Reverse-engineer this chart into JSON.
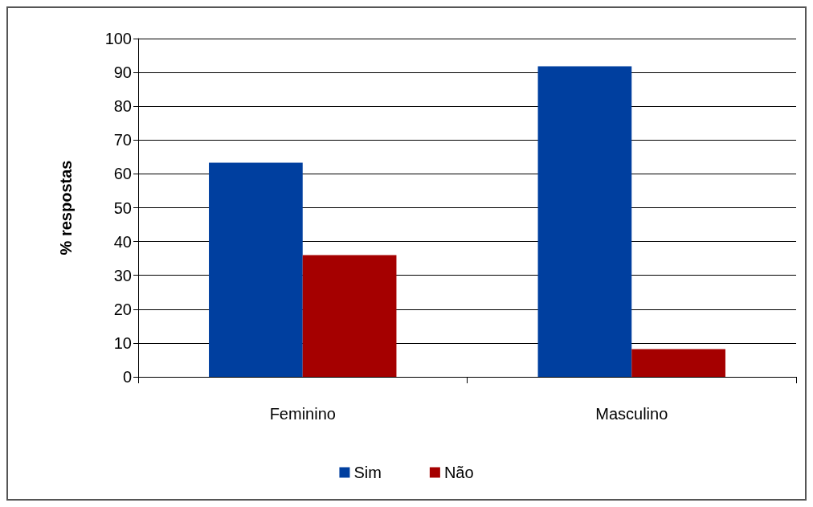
{
  "chart_data": {
    "type": "bar",
    "ylabel": "% respostas",
    "categories": [
      "Feminino",
      "Masculino"
    ],
    "series": [
      {
        "name": "Sim",
        "color": "#003f9f",
        "values": [
          63.3,
          91.8
        ]
      },
      {
        "name": "Não",
        "color": "#a50000",
        "values": [
          36,
          8.2
        ]
      }
    ],
    "ylim": [
      0,
      100
    ],
    "yticks": [
      0,
      10,
      20,
      30,
      40,
      50,
      60,
      70,
      80,
      90,
      100
    ],
    "grid": "y",
    "legend": "bottom"
  }
}
